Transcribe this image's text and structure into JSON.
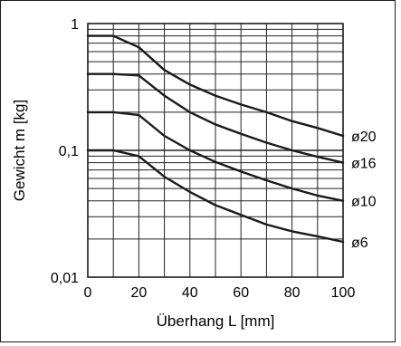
{
  "chart_data": {
    "type": "line",
    "title": "",
    "xlabel": "Überhang L [mm]",
    "ylabel": "Gewicht m [kg]",
    "xscale": "linear",
    "yscale": "log",
    "xlim": [
      0,
      100
    ],
    "ylim": [
      0.01,
      1
    ],
    "x_ticks": [
      0,
      20,
      40,
      60,
      80,
      100
    ],
    "x_tick_labels": [
      "0",
      "20",
      "40",
      "60",
      "80",
      "100"
    ],
    "y_ticks": [
      0.01,
      0.1,
      1
    ],
    "y_tick_labels": [
      "0,01",
      "0,1",
      "1"
    ],
    "grid": true,
    "grid_x_step": 10,
    "grid_y": "log-minor",
    "line_color": "#1a1a1a",
    "grid_color": "#222222",
    "series": [
      {
        "name": "ø20",
        "x": [
          0,
          10,
          20,
          30,
          40,
          50,
          60,
          70,
          80,
          90,
          100
        ],
        "y": [
          0.8,
          0.8,
          0.65,
          0.43,
          0.33,
          0.27,
          0.23,
          0.2,
          0.17,
          0.15,
          0.13
        ]
      },
      {
        "name": "ø16",
        "x": [
          0,
          10,
          20,
          30,
          40,
          50,
          60,
          70,
          80,
          90,
          100
        ],
        "y": [
          0.4,
          0.4,
          0.39,
          0.27,
          0.2,
          0.16,
          0.135,
          0.115,
          0.1,
          0.089,
          0.08
        ]
      },
      {
        "name": "ø10",
        "x": [
          0,
          10,
          20,
          30,
          40,
          50,
          60,
          70,
          80,
          90,
          100
        ],
        "y": [
          0.2,
          0.2,
          0.19,
          0.13,
          0.1,
          0.081,
          0.068,
          0.058,
          0.05,
          0.044,
          0.04
        ]
      },
      {
        "name": "ø6",
        "x": [
          0,
          10,
          20,
          30,
          40,
          50,
          60,
          70,
          80,
          90,
          100
        ],
        "y": [
          0.1,
          0.1,
          0.09,
          0.062,
          0.047,
          0.037,
          0.031,
          0.026,
          0.023,
          0.021,
          0.019
        ]
      }
    ]
  }
}
